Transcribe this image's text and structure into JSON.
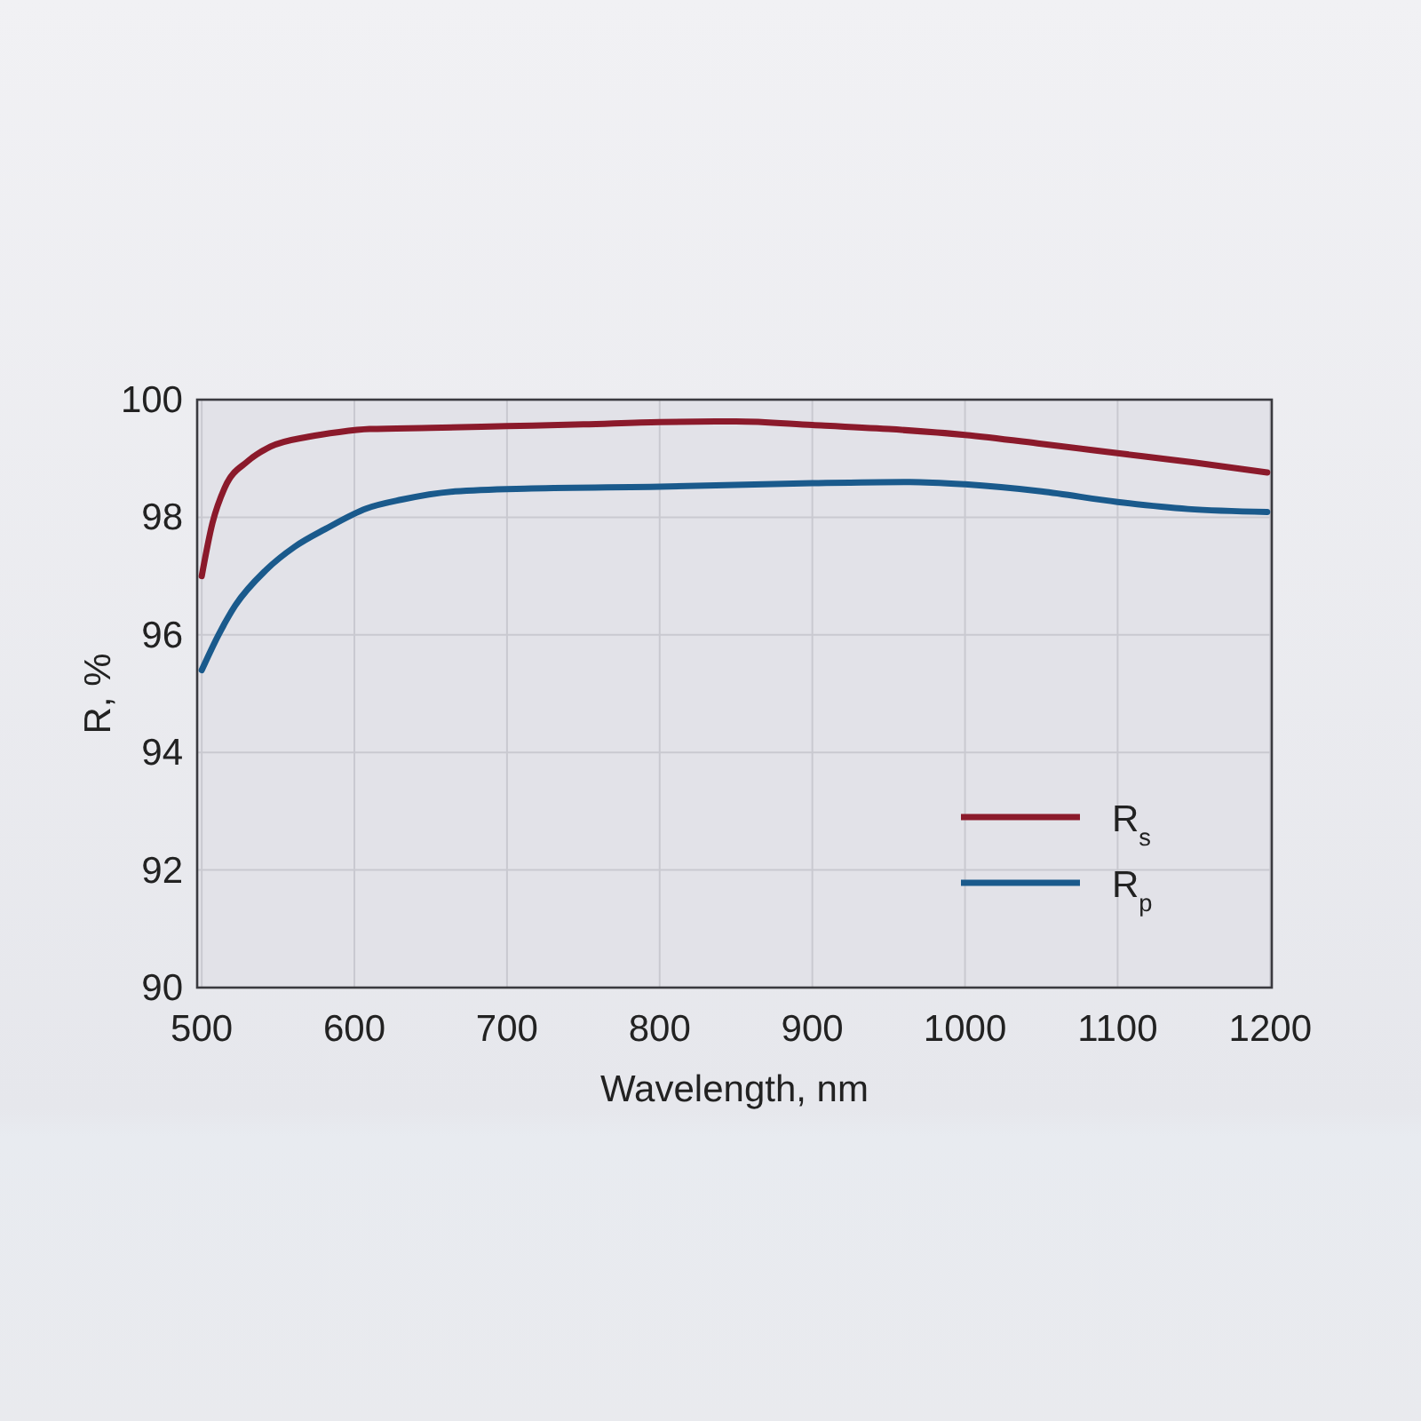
{
  "chart_data": {
    "type": "line",
    "xlabel": "Wavelength, nm",
    "ylabel": "R, %",
    "xlim": [
      497,
      1201
    ],
    "ylim": [
      90,
      100
    ],
    "xticks": [
      500,
      600,
      700,
      800,
      900,
      1000,
      1100,
      1200
    ],
    "yticks": [
      90,
      92,
      94,
      96,
      98,
      100
    ],
    "grid": true,
    "legend": "bottom right",
    "series": [
      {
        "name": "R$_{s}$",
        "color": "#8b1a2b",
        "x": [
          500,
          507,
          515,
          530,
          545,
          570,
          590,
          610,
          650,
          700,
          750,
          800,
          850,
          900,
          950,
          1000,
          1050,
          1100,
          1150,
          1198
        ],
        "values": [
          97.0,
          97.9,
          98.5,
          98.95,
          99.2,
          99.37,
          99.45,
          99.5,
          99.52,
          99.55,
          99.58,
          99.62,
          99.63,
          99.57,
          99.5,
          99.4,
          99.25,
          99.09,
          98.93,
          98.76
        ]
      },
      {
        "name": "R$_{p}$",
        "color": "#1a5a8c",
        "x": [
          500,
          511,
          522,
          542,
          561,
          581,
          608,
          631,
          666,
          716,
          800,
          900,
          964,
          1000,
          1050,
          1100,
          1146,
          1198
        ],
        "values": [
          95.4,
          96.0,
          96.5,
          97.1,
          97.5,
          97.8,
          98.15,
          98.3,
          98.44,
          98.49,
          98.52,
          98.58,
          98.6,
          98.56,
          98.44,
          98.26,
          98.14,
          98.09
        ]
      }
    ]
  }
}
